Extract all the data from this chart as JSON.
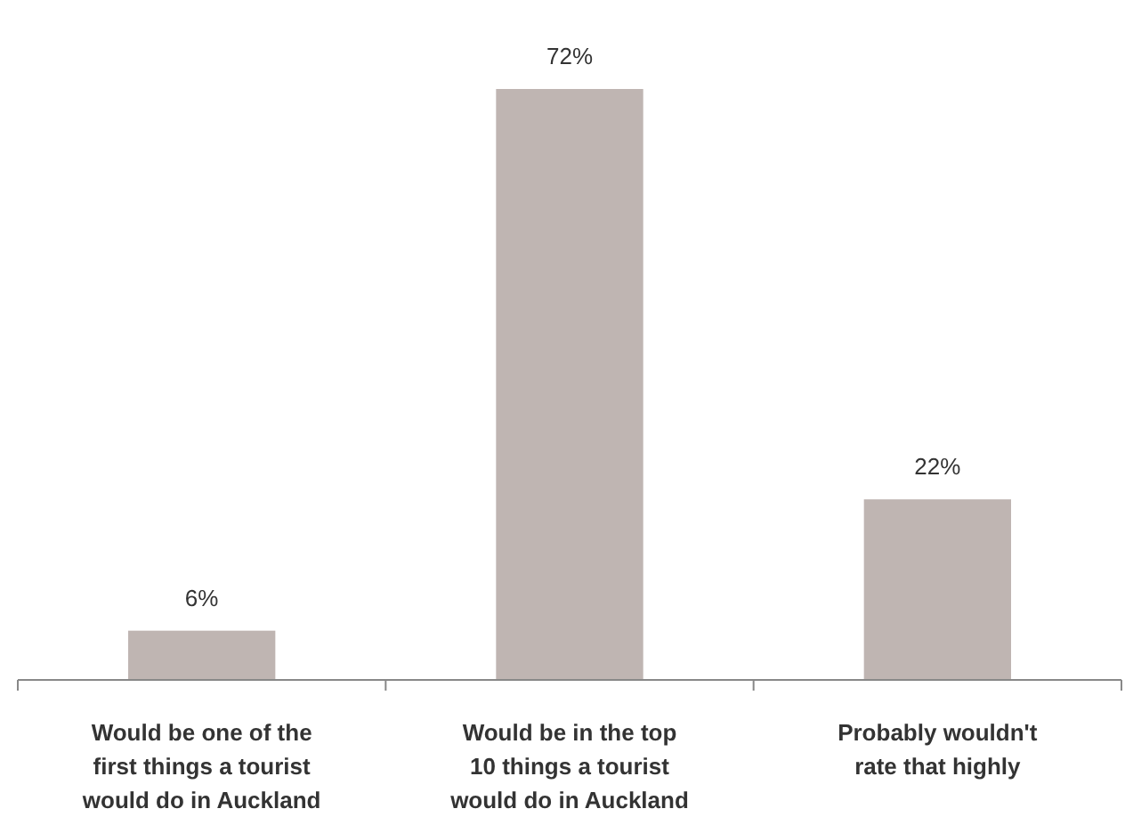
{
  "chart_data": {
    "type": "bar",
    "categories": [
      "Would be one of the\nfirst things a tourist\nwould do in Auckland",
      "Would be in the top\n10 things a tourist\nwould do in Auckland",
      "Probably wouldn't\nrate that highly"
    ],
    "values": [
      6,
      72,
      22
    ],
    "value_labels": [
      "6%",
      "72%",
      "22%"
    ],
    "color": "#bfb5b2"
  }
}
